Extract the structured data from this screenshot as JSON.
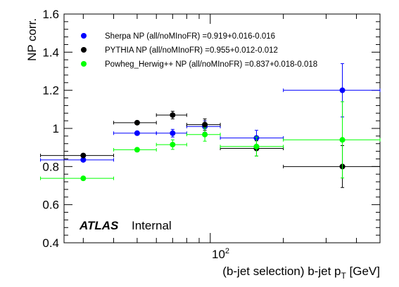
{
  "chart_data": {
    "type": "scatter",
    "x_scale": "log",
    "xlim": [
      25,
      500
    ],
    "ylim": [
      0.4,
      1.6
    ],
    "xlabel_main": "(b-jet selection) b-jet p",
    "xlabel_sub": "T",
    "xlabel_unit": " [GeV]",
    "ylabel": "NP corr.",
    "y_ticks": [
      0.4,
      0.6,
      0.8,
      1.0,
      1.2,
      1.4,
      1.6
    ],
    "y_tick_labels": [
      "0.4",
      "0.6",
      "0.8",
      "1",
      "1.2",
      "1.4",
      "1.6"
    ],
    "x_tick_major": 100,
    "x_tick_label_base": "10",
    "x_tick_label_exp": "2",
    "atlas_label": "ATLAS",
    "status_label": "Internal",
    "legend_position": "top-left",
    "series": [
      {
        "name": "Sherpa NP (all/noMInoFR) =0.919+0.016-0.016",
        "color": "#0000ff",
        "points": [
          {
            "x": 30,
            "xlo": 20,
            "xhi": 40,
            "y": 0.835,
            "err": 0.01
          },
          {
            "x": 50,
            "xlo": 40,
            "xhi": 60,
            "y": 0.975,
            "err": 0.01
          },
          {
            "x": 70,
            "xlo": 60,
            "xhi": 80,
            "y": 0.975,
            "err": 0.02
          },
          {
            "x": 95,
            "xlo": 80,
            "xhi": 110,
            "y": 1.01,
            "err": 0.03
          },
          {
            "x": 155,
            "xlo": 110,
            "xhi": 200,
            "y": 0.95,
            "err": 0.04
          },
          {
            "x": 350,
            "xlo": 200,
            "xhi": 500,
            "y": 1.2,
            "err": 0.14
          }
        ]
      },
      {
        "name": "PYTHIA NP (all/noMInoFR) =0.955+0.012-0.012",
        "color": "#000000",
        "points": [
          {
            "x": 30,
            "xlo": 20,
            "xhi": 40,
            "y": 0.858,
            "err": 0.008
          },
          {
            "x": 50,
            "xlo": 40,
            "xhi": 60,
            "y": 1.03,
            "err": 0.008
          },
          {
            "x": 70,
            "xlo": 60,
            "xhi": 80,
            "y": 1.07,
            "err": 0.02
          },
          {
            "x": 95,
            "xlo": 80,
            "xhi": 110,
            "y": 1.02,
            "err": 0.03
          },
          {
            "x": 155,
            "xlo": 110,
            "xhi": 200,
            "y": 0.895,
            "err": 0.04
          },
          {
            "x": 350,
            "xlo": 200,
            "xhi": 500,
            "y": 0.8,
            "err": 0.11
          }
        ]
      },
      {
        "name": "Powheg_Herwig++ NP (all/noMInoFR) =0.837+0.018-0.018",
        "color": "#00ff00",
        "points": [
          {
            "x": 30,
            "xlo": 20,
            "xhi": 40,
            "y": 0.738,
            "err": 0.01
          },
          {
            "x": 50,
            "xlo": 40,
            "xhi": 60,
            "y": 0.888,
            "err": 0.01
          },
          {
            "x": 70,
            "xlo": 60,
            "xhi": 80,
            "y": 0.915,
            "err": 0.025
          },
          {
            "x": 95,
            "xlo": 80,
            "xhi": 110,
            "y": 0.968,
            "err": 0.035
          },
          {
            "x": 155,
            "xlo": 110,
            "xhi": 200,
            "y": 0.905,
            "err": 0.05
          },
          {
            "x": 350,
            "xlo": 200,
            "xhi": 500,
            "y": 0.94,
            "err": 0.2
          }
        ]
      }
    ]
  }
}
